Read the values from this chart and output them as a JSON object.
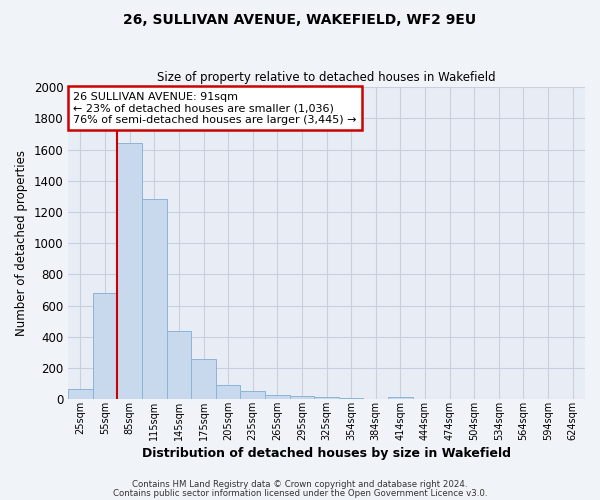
{
  "title1": "26, SULLIVAN AVENUE, WAKEFIELD, WF2 9EU",
  "title2": "Size of property relative to detached houses in Wakefield",
  "xlabel": "Distribution of detached houses by size in Wakefield",
  "ylabel": "Number of detached properties",
  "bar_categories": [
    "25sqm",
    "55sqm",
    "85sqm",
    "115sqm",
    "145sqm",
    "175sqm",
    "205sqm",
    "235sqm",
    "265sqm",
    "295sqm",
    "325sqm",
    "354sqm",
    "384sqm",
    "414sqm",
    "444sqm",
    "474sqm",
    "504sqm",
    "534sqm",
    "564sqm",
    "594sqm",
    "624sqm"
  ],
  "bar_heights": [
    65,
    680,
    1640,
    1280,
    440,
    255,
    90,
    55,
    30,
    20,
    15,
    10,
    0,
    15,
    0,
    0,
    0,
    0,
    0,
    0,
    0
  ],
  "bar_color": "#c8d8ed",
  "bar_edge_color": "#8ab4d8",
  "ylim": [
    0,
    2000
  ],
  "yticks": [
    0,
    200,
    400,
    600,
    800,
    1000,
    1200,
    1400,
    1600,
    1800,
    2000
  ],
  "red_line_x": 2.0,
  "annotation_title": "26 SULLIVAN AVENUE: 91sqm",
  "annotation_line1": "← 23% of detached houses are smaller (1,036)",
  "annotation_line2": "76% of semi-detached houses are larger (3,445) →",
  "annotation_box_color": "#ffffff",
  "annotation_box_edge": "#cc0000",
  "grid_color": "#c8d0e0",
  "plot_bg_color": "#e8edf5",
  "fig_bg_color": "#f0f4f8",
  "footer1": "Contains HM Land Registry data © Crown copyright and database right 2024.",
  "footer2": "Contains public sector information licensed under the Open Government Licence v3.0."
}
